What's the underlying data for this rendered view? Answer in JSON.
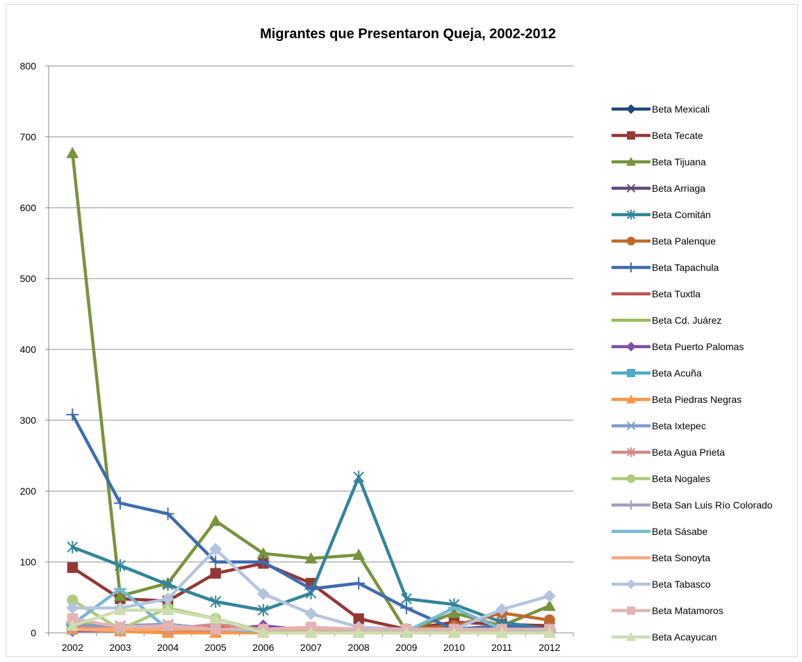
{
  "chart_data": {
    "type": "line",
    "title": "Migrantes que Presentaron Queja, 2002-2012",
    "xlabel": "",
    "ylabel": "",
    "categories": [
      "2002",
      "2003",
      "2004",
      "2005",
      "2006",
      "2007",
      "2008",
      "2009",
      "2010",
      "2011",
      "2012"
    ],
    "ylim": [
      0,
      800
    ],
    "yticks": [
      0,
      100,
      200,
      300,
      400,
      500,
      600,
      700,
      800
    ],
    "grid": true,
    "legend_position": "right",
    "series": [
      {
        "name": "Beta Mexicali",
        "color": "#1F497D",
        "marker": "diamond",
        "values": [
          10,
          5,
          5,
          3,
          2,
          2,
          2,
          2,
          2,
          2,
          2
        ]
      },
      {
        "name": "Beta Tecate",
        "color": "#953735",
        "marker": "square",
        "values": [
          92,
          48,
          45,
          84,
          98,
          70,
          20,
          5,
          15,
          12,
          10
        ]
      },
      {
        "name": "Beta Tijuana",
        "color": "#77933C",
        "marker": "triangle",
        "values": [
          677,
          52,
          70,
          158,
          112,
          105,
          110,
          2,
          28,
          10,
          38
        ]
      },
      {
        "name": "Beta Arriaga",
        "color": "#60497A",
        "marker": "x",
        "values": [
          5,
          3,
          3,
          2,
          2,
          2,
          2,
          2,
          2,
          2,
          2
        ]
      },
      {
        "name": "Beta Comitán",
        "color": "#31849B",
        "marker": "asterisk",
        "values": [
          121,
          95,
          68,
          44,
          32,
          56,
          220,
          48,
          40,
          15,
          5
        ]
      },
      {
        "name": "Beta Palenque",
        "color": "#C0692C",
        "marker": "circle",
        "values": [
          5,
          5,
          5,
          5,
          5,
          5,
          5,
          5,
          10,
          28,
          18
        ]
      },
      {
        "name": "Beta Tapachula",
        "color": "#3E6BB0",
        "marker": "plus",
        "values": [
          308,
          183,
          168,
          100,
          100,
          62,
          70,
          35,
          5,
          10,
          5
        ]
      },
      {
        "name": "Beta Tuxtla",
        "color": "#C0504D",
        "marker": "dash",
        "values": [
          12,
          8,
          8,
          8,
          5,
          5,
          5,
          5,
          5,
          5,
          5
        ]
      },
      {
        "name": "Beta Cd. Juárez",
        "color": "#9BBB59",
        "marker": "dash",
        "values": [
          15,
          10,
          8,
          5,
          3,
          2,
          2,
          2,
          2,
          2,
          2
        ]
      },
      {
        "name": "Beta Puerto Palomas",
        "color": "#7F4FA8",
        "marker": "diamond",
        "values": [
          3,
          3,
          3,
          3,
          10,
          3,
          3,
          3,
          3,
          3,
          3
        ]
      },
      {
        "name": "Beta Acuña",
        "color": "#4BACC6",
        "marker": "square",
        "values": [
          5,
          5,
          5,
          5,
          5,
          5,
          5,
          5,
          5,
          5,
          5
        ]
      },
      {
        "name": "Beta Piedras Negras",
        "color": "#F79646",
        "marker": "triangle",
        "values": [
          5,
          2,
          0,
          0,
          0,
          0,
          0,
          0,
          0,
          0,
          0
        ]
      },
      {
        "name": "Beta Ixtepec",
        "color": "#7F9CCB",
        "marker": "x",
        "values": [
          10,
          10,
          12,
          5,
          5,
          5,
          5,
          5,
          5,
          5,
          5
        ]
      },
      {
        "name": "Beta Agua Prieta",
        "color": "#D08A88",
        "marker": "asterisk",
        "values": [
          8,
          5,
          5,
          12,
          5,
          5,
          5,
          5,
          5,
          5,
          5
        ]
      },
      {
        "name": "Beta Nogales",
        "color": "#AFCB7E",
        "marker": "circle",
        "values": [
          46,
          5,
          35,
          20,
          2,
          2,
          2,
          2,
          2,
          2,
          2
        ]
      },
      {
        "name": "Beta San Luis Río Colorado",
        "color": "#A99BC4",
        "marker": "plus",
        "values": [
          5,
          5,
          5,
          5,
          5,
          5,
          5,
          5,
          5,
          5,
          5
        ]
      },
      {
        "name": "Beta Sásabe",
        "color": "#76B8D2",
        "marker": "dash",
        "values": [
          12,
          62,
          5,
          5,
          2,
          2,
          2,
          2,
          35,
          5,
          2
        ]
      },
      {
        "name": "Beta Sonoyta",
        "color": "#F9A87A",
        "marker": "dash",
        "values": [
          5,
          5,
          5,
          5,
          5,
          5,
          5,
          5,
          5,
          5,
          5
        ]
      },
      {
        "name": "Beta Tabasco",
        "color": "#B4C4DF",
        "marker": "diamond",
        "values": [
          35,
          35,
          48,
          118,
          55,
          27,
          8,
          5,
          5,
          33,
          52
        ]
      },
      {
        "name": "Beta Matamoros",
        "color": "#E2B3B2",
        "marker": "square",
        "values": [
          20,
          8,
          10,
          5,
          5,
          8,
          5,
          5,
          5,
          5,
          5
        ]
      },
      {
        "name": "Beta Acayucan",
        "color": "#CDDDAF",
        "marker": "triangle",
        "values": [
          10,
          32,
          32,
          20,
          0,
          0,
          0,
          0,
          0,
          0,
          0
        ]
      }
    ]
  }
}
